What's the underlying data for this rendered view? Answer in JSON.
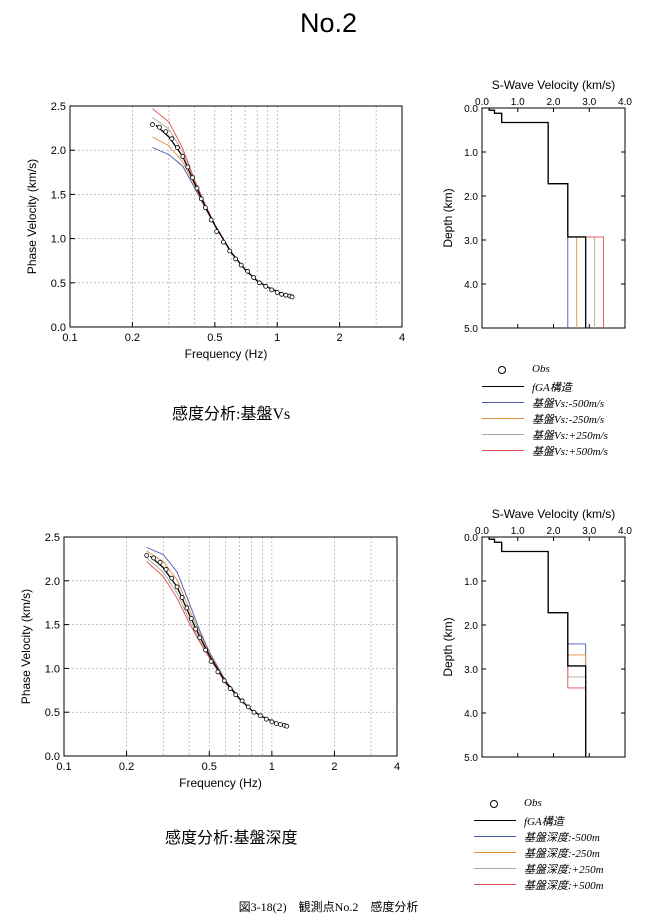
{
  "page": {
    "title": "No.2",
    "caption": "図3-18(2)　観測点No.2　感度分析"
  },
  "panels": [
    {
      "subtitle": "感度分析:基盤Vs",
      "legend": [
        "Obs",
        "fGA構造",
        "基盤Vs:-500m/s",
        "基盤Vs:-250m/s",
        "基盤Vs:+250m/s",
        "基盤Vs:+500m/s"
      ]
    },
    {
      "subtitle": "感度分析:基盤深度",
      "legend": [
        "Obs",
        "fGA構造",
        "基盤深度:-500m",
        "基盤深度:-250m",
        "基盤深度:+250m",
        "基盤深度:+500m"
      ]
    }
  ],
  "chart_data": [
    {
      "type": "line",
      "xlabel": "Frequency (Hz)",
      "ylabel": "Phase Velocity (km/s)",
      "xscale": "log",
      "xlim": [
        0.1,
        4
      ],
      "ylim": [
        0,
        2.5
      ],
      "xticks": [
        0.1,
        0.2,
        0.5,
        1,
        2,
        4
      ],
      "yticks": [
        0.0,
        0.5,
        1.0,
        1.5,
        2.0,
        2.5
      ],
      "grid": true,
      "obs": {
        "x": [
          0.25,
          0.27,
          0.29,
          0.31,
          0.33,
          0.35,
          0.37,
          0.39,
          0.41,
          0.43,
          0.45,
          0.48,
          0.51,
          0.55,
          0.59,
          0.63,
          0.67,
          0.72,
          0.77,
          0.82,
          0.88,
          0.94,
          1.0,
          1.05,
          1.1,
          1.15,
          1.18
        ],
        "y": [
          2.29,
          2.26,
          2.21,
          2.13,
          2.03,
          1.93,
          1.81,
          1.69,
          1.57,
          1.45,
          1.35,
          1.21,
          1.08,
          0.96,
          0.86,
          0.77,
          0.7,
          0.63,
          0.56,
          0.5,
          0.46,
          0.42,
          0.39,
          0.37,
          0.36,
          0.35,
          0.34
        ]
      },
      "series": [
        {
          "name": "fGA構造",
          "color": "#000000",
          "x": [
            0.26,
            0.3,
            0.35,
            0.4,
            0.45,
            0.5,
            0.6,
            0.7,
            0.8,
            0.9,
            1.0,
            1.1,
            1.2
          ],
          "y": [
            2.28,
            2.15,
            1.93,
            1.62,
            1.36,
            1.15,
            0.84,
            0.65,
            0.52,
            0.45,
            0.4,
            0.36,
            0.34
          ]
        },
        {
          "color": "#4a5aa8",
          "x": [
            0.25,
            0.3,
            0.35,
            0.4,
            0.45,
            0.5,
            0.6,
            0.7,
            0.8,
            0.9,
            1.0,
            1.1,
            1.2
          ],
          "y": [
            2.03,
            1.95,
            1.82,
            1.57,
            1.34,
            1.15,
            0.84,
            0.65,
            0.52,
            0.45,
            0.4,
            0.36,
            0.34
          ]
        },
        {
          "color": "#e09040",
          "x": [
            0.25,
            0.3,
            0.35,
            0.4,
            0.45,
            0.5,
            0.6,
            0.7,
            0.8,
            0.9,
            1.0,
            1.1,
            1.2
          ],
          "y": [
            2.15,
            2.05,
            1.87,
            1.6,
            1.35,
            1.15,
            0.84,
            0.65,
            0.52,
            0.45,
            0.4,
            0.36,
            0.34
          ]
        },
        {
          "color": "#a8a8a8",
          "x": [
            0.25,
            0.3,
            0.35,
            0.4,
            0.45,
            0.5,
            0.6,
            0.7,
            0.8,
            0.9,
            1.0,
            1.1,
            1.2
          ],
          "y": [
            2.37,
            2.24,
            1.98,
            1.64,
            1.37,
            1.16,
            0.84,
            0.65,
            0.52,
            0.45,
            0.4,
            0.36,
            0.34
          ]
        },
        {
          "color": "#e05050",
          "x": [
            0.25,
            0.3,
            0.35,
            0.4,
            0.45,
            0.5,
            0.6,
            0.7,
            0.8,
            0.9,
            1.0,
            1.1,
            1.2
          ],
          "y": [
            2.47,
            2.32,
            2.02,
            1.66,
            1.38,
            1.16,
            0.85,
            0.65,
            0.52,
            0.45,
            0.4,
            0.36,
            0.34
          ]
        }
      ]
    },
    {
      "type": "line",
      "title": "S-Wave Velocity (km/s)",
      "ylabel": "Depth (km)",
      "xlim": [
        0,
        4
      ],
      "ylim": [
        0,
        5
      ],
      "xticks": [
        0.0,
        1.0,
        2.0,
        3.0,
        4.0
      ],
      "yticks": [
        0.0,
        1.0,
        2.0,
        3.0,
        4.0,
        5.0
      ],
      "profile": {
        "vs": [
          0.2,
          0.35,
          0.55,
          1.85,
          2.4,
          2.9
        ],
        "bottom": [
          0.05,
          0.12,
          0.33,
          1.72,
          2.93,
          5.0
        ]
      },
      "series": [
        {
          "name": "fGA構造",
          "color": "#000000",
          "half_vs": 2.9,
          "half_top": 2.93
        },
        {
          "color": "#4a5aa8",
          "half_vs": 2.4,
          "half_top": 2.93
        },
        {
          "color": "#e09040",
          "half_vs": 2.65,
          "half_top": 2.93
        },
        {
          "color": "#a8a8a8",
          "half_vs": 3.15,
          "half_top": 2.93
        },
        {
          "color": "#e05050",
          "half_vs": 3.4,
          "half_top": 2.93
        }
      ]
    },
    {
      "type": "line",
      "xlabel": "Frequency (Hz)",
      "ylabel": "Phase Velocity (km/s)",
      "xscale": "log",
      "xlim": [
        0.1,
        4
      ],
      "ylim": [
        0,
        2.5
      ],
      "xticks": [
        0.1,
        0.2,
        0.5,
        1,
        2,
        4
      ],
      "yticks": [
        0.0,
        0.5,
        1.0,
        1.5,
        2.0,
        2.5
      ],
      "grid": true,
      "obs": {
        "x": [
          0.25,
          0.27,
          0.29,
          0.31,
          0.33,
          0.35,
          0.37,
          0.39,
          0.41,
          0.43,
          0.45,
          0.48,
          0.51,
          0.55,
          0.59,
          0.63,
          0.67,
          0.72,
          0.77,
          0.82,
          0.88,
          0.94,
          1.0,
          1.05,
          1.1,
          1.15,
          1.18
        ],
        "y": [
          2.29,
          2.26,
          2.21,
          2.13,
          2.03,
          1.93,
          1.81,
          1.69,
          1.57,
          1.45,
          1.35,
          1.21,
          1.08,
          0.96,
          0.86,
          0.77,
          0.7,
          0.63,
          0.56,
          0.5,
          0.46,
          0.42,
          0.39,
          0.37,
          0.36,
          0.35,
          0.34
        ]
      },
      "series": [
        {
          "name": "fGA構造",
          "color": "#000000",
          "x": [
            0.26,
            0.3,
            0.35,
            0.4,
            0.45,
            0.5,
            0.6,
            0.7,
            0.8,
            0.9,
            1.0,
            1.1,
            1.2
          ],
          "y": [
            2.28,
            2.15,
            1.93,
            1.62,
            1.36,
            1.15,
            0.84,
            0.65,
            0.52,
            0.45,
            0.4,
            0.36,
            0.34
          ]
        },
        {
          "color": "#4a5aa8",
          "x": [
            0.25,
            0.3,
            0.35,
            0.4,
            0.45,
            0.5,
            0.6,
            0.7,
            0.8,
            0.9,
            1.0,
            1.1,
            1.2
          ],
          "y": [
            2.38,
            2.3,
            2.1,
            1.75,
            1.43,
            1.19,
            0.86,
            0.66,
            0.52,
            0.45,
            0.4,
            0.36,
            0.34
          ]
        },
        {
          "color": "#e09040",
          "x": [
            0.25,
            0.3,
            0.35,
            0.4,
            0.45,
            0.5,
            0.6,
            0.7,
            0.8,
            0.9,
            1.0,
            1.1,
            1.2
          ],
          "y": [
            2.34,
            2.22,
            2.01,
            1.68,
            1.4,
            1.17,
            0.85,
            0.65,
            0.52,
            0.45,
            0.4,
            0.36,
            0.34
          ]
        },
        {
          "color": "#a8a8a8",
          "x": [
            0.25,
            0.3,
            0.35,
            0.4,
            0.45,
            0.5,
            0.6,
            0.7,
            0.8,
            0.9,
            1.0,
            1.1,
            1.2
          ],
          "y": [
            2.26,
            2.1,
            1.86,
            1.56,
            1.32,
            1.13,
            0.84,
            0.65,
            0.52,
            0.45,
            0.4,
            0.36,
            0.34
          ]
        },
        {
          "color": "#e05050",
          "x": [
            0.25,
            0.3,
            0.35,
            0.4,
            0.45,
            0.5,
            0.6,
            0.7,
            0.8,
            0.9,
            1.0,
            1.1,
            1.2
          ],
          "y": [
            2.22,
            2.05,
            1.8,
            1.52,
            1.3,
            1.12,
            0.83,
            0.65,
            0.52,
            0.45,
            0.4,
            0.36,
            0.34
          ]
        }
      ]
    },
    {
      "type": "line",
      "title": "S-Wave Velocity (km/s)",
      "ylabel": "Depth (km)",
      "xlim": [
        0,
        4
      ],
      "ylim": [
        0,
        5
      ],
      "xticks": [
        0.0,
        1.0,
        2.0,
        3.0,
        4.0
      ],
      "yticks": [
        0.0,
        1.0,
        2.0,
        3.0,
        4.0,
        5.0
      ],
      "profile": {
        "vs": [
          0.2,
          0.35,
          0.55,
          1.85,
          2.4,
          2.9
        ],
        "bottom": [
          0.05,
          0.12,
          0.33,
          1.72,
          2.93,
          5.0
        ]
      },
      "series": [
        {
          "name": "fGA構造",
          "color": "#000000",
          "half_vs": 2.9,
          "half_top": 2.93
        },
        {
          "color": "#4a5aa8",
          "half_vs": 2.9,
          "half_top": 2.43
        },
        {
          "color": "#e09040",
          "half_vs": 2.9,
          "half_top": 2.68
        },
        {
          "color": "#a8a8a8",
          "half_vs": 2.9,
          "half_top": 3.18
        },
        {
          "color": "#e05050",
          "half_vs": 2.9,
          "half_top": 3.43
        }
      ]
    }
  ]
}
